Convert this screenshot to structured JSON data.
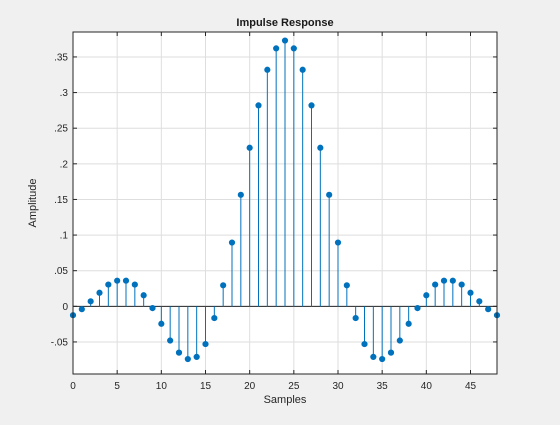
{
  "chart_data": {
    "type": "stem",
    "title": "Impulse Response",
    "xlabel": "Samples",
    "ylabel": "Amplitude",
    "xlim": [
      0,
      48
    ],
    "ylim": [
      -0.095,
      0.385
    ],
    "x_ticks": [
      0,
      5,
      10,
      15,
      20,
      25,
      30,
      35,
      40,
      45
    ],
    "y_ticks": [
      -0.05,
      0,
      0.05,
      0.1,
      0.15,
      0.2,
      0.25,
      0.3,
      0.35
    ],
    "grid": true,
    "series_color": "#0072bd",
    "series": [
      {
        "x": [
          0,
          1,
          2,
          3,
          4,
          5,
          6,
          7,
          8,
          9,
          10,
          11,
          12,
          13,
          14,
          15,
          16,
          17,
          18,
          19,
          20,
          21,
          22,
          23,
          24,
          25,
          26,
          27,
          28,
          29,
          30,
          31,
          32,
          33,
          34,
          35,
          36,
          37,
          38,
          39,
          40,
          41,
          42,
          43,
          44,
          45,
          46,
          47,
          48
        ],
        "values": [
          -0.0125,
          -0.004,
          0.007,
          0.019,
          0.0305,
          0.036,
          0.036,
          0.0305,
          0.0155,
          -0.0025,
          -0.0245,
          -0.048,
          -0.065,
          -0.074,
          -0.071,
          -0.053,
          -0.0165,
          0.0295,
          0.0895,
          0.1565,
          0.2225,
          0.282,
          0.332,
          0.362,
          0.373,
          0.362,
          0.332,
          0.282,
          0.2225,
          0.1565,
          0.0895,
          0.0295,
          -0.0165,
          -0.053,
          -0.071,
          -0.074,
          -0.065,
          -0.048,
          -0.0245,
          -0.0025,
          0.0155,
          0.0305,
          0.036,
          0.036,
          0.0305,
          0.019,
          0.007,
          -0.004,
          -0.0125
        ]
      }
    ]
  }
}
